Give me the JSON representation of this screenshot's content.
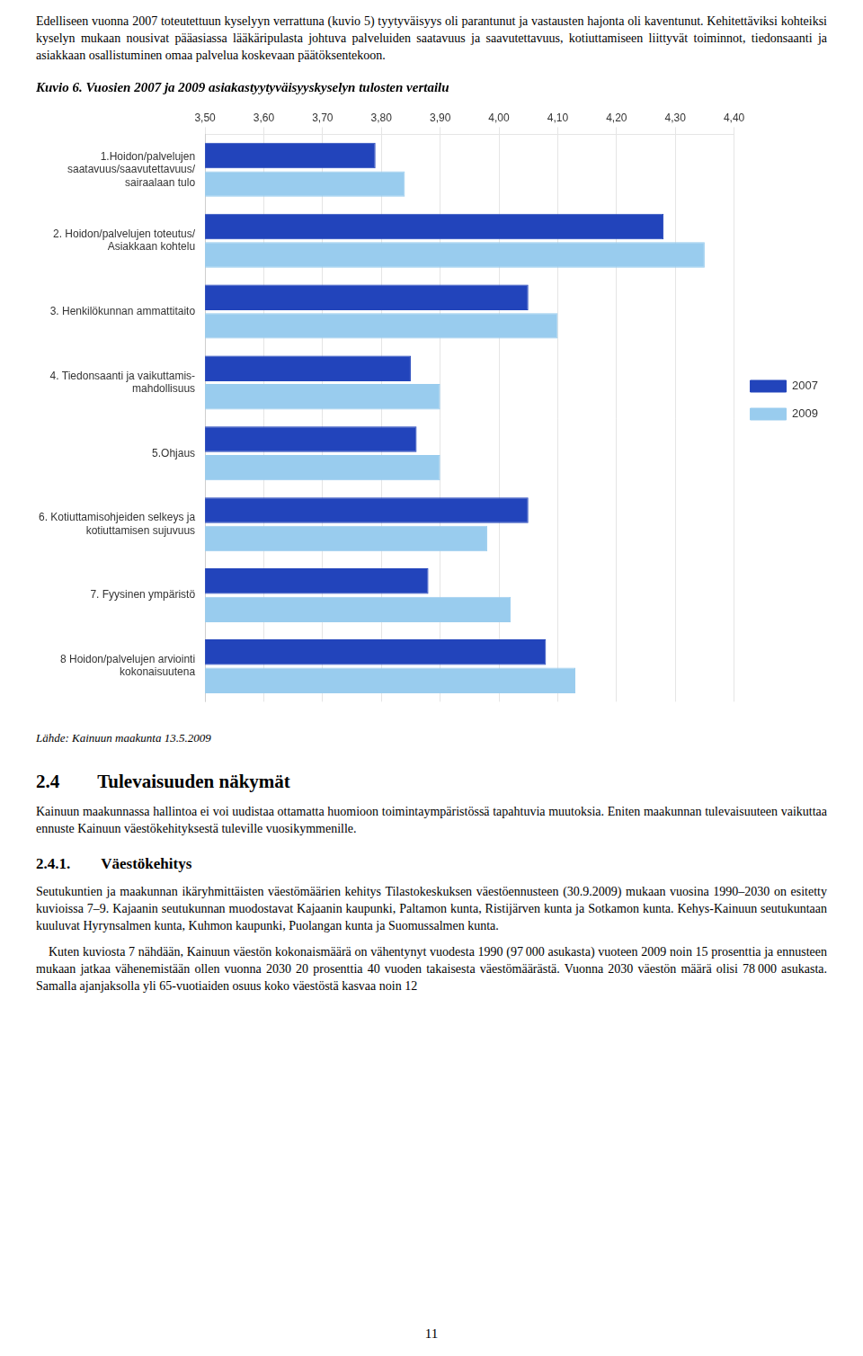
{
  "header_text": "Edelliseen vuonna 2007 toteutettuun kyselyyn verrattuna (kuvio 5) tyytyväisyys oli parantunut ja vastausten hajonta oli kaventunut. Kehitettäviksi kohteiksi kyselyn mukaan nousivat pääasiassa lääkäripulasta johtuva palveluiden saatavuus ja saavutettavuus, kotiuttamiseen liittyvät toiminnot, tiedonsaanti ja asiakkaan osallistuminen omaa palvelua koskevaan päätöksentekoon.",
  "footer_text": "Lähde: Kainuun maakunta 13.5.2009",
  "section_title": "2.4  Tulevaisuuden näkymät",
  "section_text1": "Kainuun maakunnassa hallintoa ei voi uudistaa ottamatta huomioon toimintaympäristössä tapahtuvia muutoksia. Eniten maakunnan tulevaisuuteen vaikuttaa ennuste Kainuun väestökehityksestä tuleville vuosikymmenille.",
  "section_title2": "2.4.1.  Väestökehitys",
  "section_text2": "Seutukuntien ja maakunnan ikäryhmittäisten väestömäärien kehitys Tilastokeskuksen väestöennusteen (30.9.2009) mukaan vuosina 1990–2030 on esitetty kuvioissa 7–9. Kajaanin seutukunnan muodostavat Kajaanin kaupunki, Paltamon kunta, Ristijärven kunta ja Sotkamon kunta. Kehys-Kainuun seutukuntaan kuuluvat Hyrynsalmen kunta, Kuhmon kaupunki, Puolangan kunta ja Suomussalmen kunta.",
  "section_text3": " Kuten kuviosta 7 nähdään, Kainuun väestön kokonaismäärä on vähentynyt vuodesta 1990 (97 000 asukasta) vuoteen 2009 noin 15 prosenttia ja ennusteen mukaan jatkaa vähenemistään ollen vuonna 2030 20 prosenttia 40 vuoden takaisesta väestömäärästä. Vuonna 2030 väestön määrä olisi 78 000 asukasta. Samalla ajanjaksolla yli 65-vuotiaiden osuus koko väestöstä kasvaa noin 12",
  "page_number": "11",
  "chart_data": {
    "type": "bar",
    "orientation": "horizontal",
    "title": "Kuvio 6. Vuosien 2007 ja 2009 asiakastyytyväisyyskyselyn tulosten vertailu",
    "categories": [
      "1.Hoidon/palvelujen\nsaatavuus/saavutettavuus/\nsairaalaan tulo",
      "2. Hoidon/palvelujen toteutus/\nAsiakkaan kohtelu",
      "3. Henkilökunnan ammattitaito",
      "4. Tiedonsaanti ja vaikuttamis-\nmahdollisuus",
      "5.Ohjaus",
      "6. Kotiuttamisohjeiden selkeys ja\nkotiuttamisen sujuvuus",
      "7. Fyysinen ympäristö",
      "8 Hoidon/palvelujen arviointi\nkokonaisuutena"
    ],
    "series": [
      {
        "name": "2007",
        "color": "#2244bb",
        "values": [
          3.79,
          4.28,
          4.05,
          3.85,
          3.86,
          4.05,
          3.88,
          4.08
        ]
      },
      {
        "name": "2009",
        "color": "#99ccee",
        "values": [
          3.84,
          4.35,
          4.1,
          3.9,
          3.9,
          3.98,
          4.02,
          4.13
        ]
      }
    ],
    "xlim": [
      3.5,
      4.4
    ],
    "xticks": [
      {
        "value": 3.5,
        "label": "3,50"
      },
      {
        "value": 3.6,
        "label": "3,60"
      },
      {
        "value": 3.7,
        "label": "3,70"
      },
      {
        "value": 3.8,
        "label": "3,80"
      },
      {
        "value": 3.9,
        "label": "3,90"
      },
      {
        "value": 4.0,
        "label": "4,00"
      },
      {
        "value": 4.1,
        "label": "4,10"
      },
      {
        "value": 4.2,
        "label": "4,20"
      },
      {
        "value": 4.3,
        "label": "4,30"
      },
      {
        "value": 4.4,
        "label": "4,40"
      }
    ],
    "grid": true,
    "legend": "right"
  }
}
